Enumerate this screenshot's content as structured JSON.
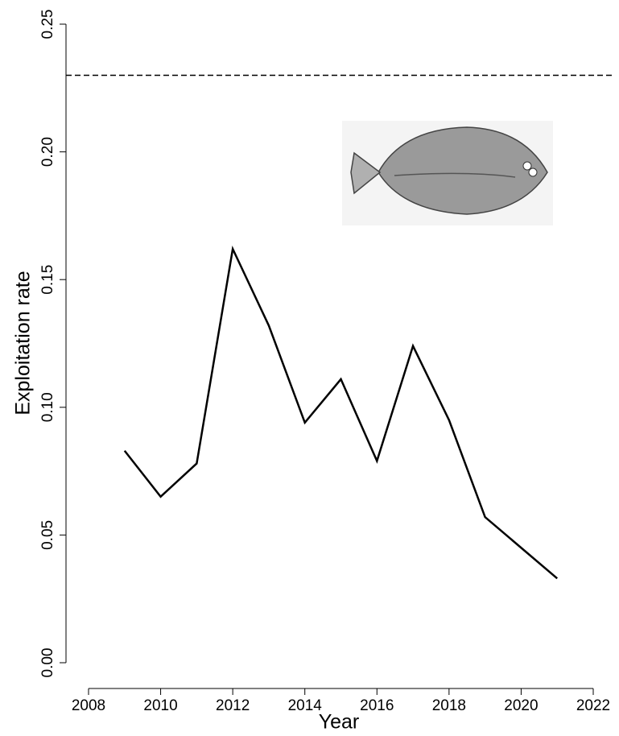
{
  "chart_data": {
    "type": "line",
    "x_label": "Year",
    "y_label": "Exploitation rate",
    "x": [
      2009,
      2010,
      2011,
      2012,
      2013,
      2014,
      2015,
      2016,
      2017,
      2018,
      2019,
      2020,
      2021
    ],
    "series": [
      {
        "color": "#000000",
        "values": [
          0.083,
          0.065,
          0.078,
          0.162,
          0.132,
          0.094,
          0.111,
          0.079,
          0.124,
          0.095,
          0.057,
          0.045,
          0.033
        ]
      }
    ],
    "reference_line": 0.23,
    "xlim": [
      2008,
      2022
    ],
    "xticks": [
      2008,
      2010,
      2012,
      2014,
      2016,
      2018,
      2020,
      2022
    ],
    "ylim": [
      0,
      0.25
    ],
    "yticks": [
      {
        "value": 0,
        "label": "0.00"
      },
      0.05,
      {
        "value": 0.1,
        "label": "0.10"
      },
      0.15,
      {
        "value": 0.2,
        "label": "0.20"
      },
      0.25
    ]
  }
}
